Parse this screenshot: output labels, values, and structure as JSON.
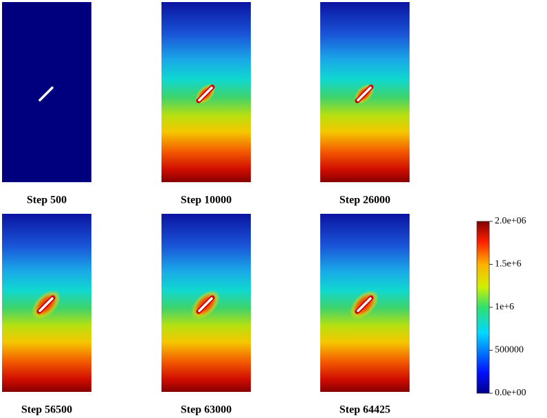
{
  "panels": [
    {
      "label": "Step 500"
    },
    {
      "label": "Step 10000"
    },
    {
      "label": "Step 26000"
    },
    {
      "label": "Step 56500"
    },
    {
      "label": "Step 63000"
    },
    {
      "label": "Step 64425"
    }
  ],
  "colorbar": {
    "ticks": [
      "2.0e+06",
      "1.5e+6",
      "1e+6",
      "500000",
      "0.0e+00"
    ]
  }
}
